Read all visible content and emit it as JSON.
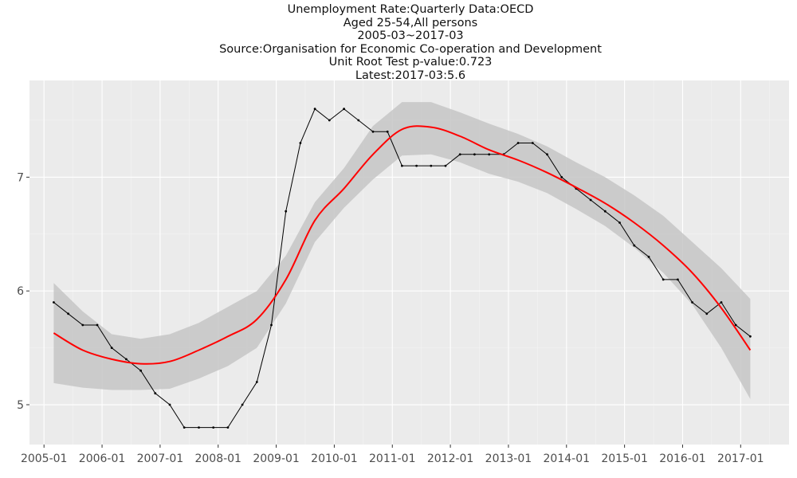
{
  "chart_data": {
    "type": "line",
    "title_lines": [
      "Unemployment Rate:Quarterly Data:OECD",
      "Aged 25-54,All persons",
      "2005-03~2017-03",
      "Source:Organisation for Economic Co-operation and Development",
      "Unit Root Test p-value:0.723",
      "Latest:2017-03:5.6"
    ],
    "xlabel": "",
    "ylabel": "",
    "x_ticks": [
      "2005-01",
      "2006-01",
      "2007-01",
      "2008-01",
      "2009-01",
      "2010-01",
      "2011-01",
      "2012-01",
      "2013-01",
      "2014-01",
      "2015-01",
      "2016-01",
      "2017-01"
    ],
    "y_ticks": [
      "5",
      "6",
      "7"
    ],
    "xlim": [
      "2004-10",
      "2017-11"
    ],
    "ylim": [
      4.65,
      7.85
    ],
    "grid": true,
    "legend": "none",
    "colors": {
      "panel_bg": "#ebebeb",
      "grid_major": "#ffffff",
      "grid_minor": "#f4f4f4",
      "data_line": "#000000",
      "smooth_line": "#ff0000",
      "ribbon": "#c6c6c6"
    },
    "series": [
      {
        "x": [
          "2005-03",
          "2005-06",
          "2005-09",
          "2005-12",
          "2006-03",
          "2006-06",
          "2006-09",
          "2006-12",
          "2007-03",
          "2007-06",
          "2007-09",
          "2007-12",
          "2008-03",
          "2008-06",
          "2008-09",
          "2008-12",
          "2009-03",
          "2009-06",
          "2009-09",
          "2009-12",
          "2010-03",
          "2010-06",
          "2010-09",
          "2010-12",
          "2011-03",
          "2011-06",
          "2011-09",
          "2011-12",
          "2012-03",
          "2012-06",
          "2012-09",
          "2012-12",
          "2013-03",
          "2013-06",
          "2013-09",
          "2013-12",
          "2014-03",
          "2014-06",
          "2014-09",
          "2014-12",
          "2015-03",
          "2015-06",
          "2015-09",
          "2015-12",
          "2016-03",
          "2016-06",
          "2016-09",
          "2016-12",
          "2017-03"
        ],
        "values": [
          5.9,
          5.8,
          5.7,
          5.7,
          5.5,
          5.4,
          5.3,
          5.1,
          5.0,
          4.8,
          4.8,
          4.8,
          4.8,
          5.0,
          5.2,
          5.7,
          6.7,
          7.3,
          7.6,
          7.5,
          7.6,
          7.5,
          7.4,
          7.4,
          7.1,
          7.1,
          7.1,
          7.1,
          7.2,
          7.2,
          7.2,
          7.2,
          7.3,
          7.3,
          7.2,
          7.0,
          6.9,
          6.8,
          6.7,
          6.6,
          6.4,
          6.3,
          6.1,
          6.1,
          5.9,
          5.8,
          5.9,
          5.7,
          5.6
        ]
      },
      {
        "x": [
          "2005-03",
          "2005-09",
          "2006-03",
          "2006-09",
          "2007-03",
          "2007-09",
          "2008-03",
          "2008-09",
          "2009-03",
          "2009-09",
          "2010-03",
          "2010-09",
          "2011-03",
          "2011-09",
          "2012-03",
          "2012-09",
          "2013-03",
          "2013-09",
          "2014-03",
          "2014-09",
          "2015-03",
          "2015-09",
          "2016-03",
          "2016-09",
          "2017-03"
        ],
        "values": [
          5.63,
          5.48,
          5.4,
          5.36,
          5.38,
          5.48,
          5.6,
          5.75,
          6.1,
          6.62,
          6.9,
          7.2,
          7.42,
          7.44,
          7.36,
          7.24,
          7.15,
          7.04,
          6.91,
          6.77,
          6.6,
          6.4,
          6.16,
          5.85,
          5.48
        ],
        "upper": [
          6.07,
          5.82,
          5.62,
          5.58,
          5.62,
          5.72,
          5.86,
          6.0,
          6.31,
          6.78,
          7.08,
          7.45,
          7.66,
          7.66,
          7.57,
          7.47,
          7.38,
          7.27,
          7.13,
          7.0,
          6.84,
          6.66,
          6.43,
          6.2,
          5.93
        ],
        "lower": [
          5.19,
          5.15,
          5.13,
          5.13,
          5.14,
          5.23,
          5.34,
          5.5,
          5.89,
          6.43,
          6.73,
          6.98,
          7.19,
          7.2,
          7.13,
          7.03,
          6.96,
          6.86,
          6.72,
          6.57,
          6.38,
          6.16,
          5.88,
          5.5,
          5.05
        ]
      }
    ]
  }
}
